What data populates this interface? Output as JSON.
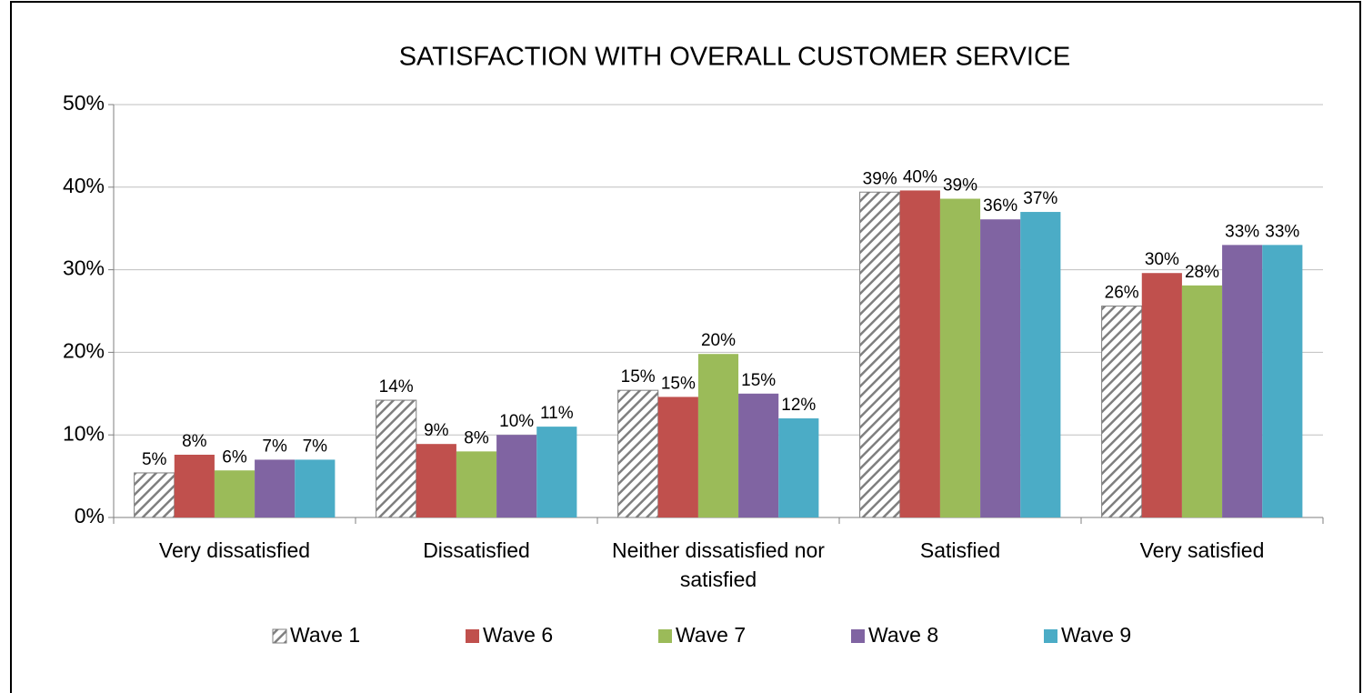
{
  "chart_data": {
    "type": "bar",
    "title": "SATISFACTION  WITH OVERALL CUSTOMER SERVICE",
    "categories": [
      "Very dissatisfied",
      "Dissatisfied",
      "Neither dissatisfied nor satisfied",
      "Satisfied",
      "Very satisfied"
    ],
    "series": [
      {
        "name": "Wave 1",
        "color": "#7f7f7f",
        "pattern": "hatch",
        "values": [
          5.4,
          14.2,
          15.4,
          39.4,
          25.6
        ],
        "value_labels": [
          "5%",
          "14%",
          "15%",
          "39%",
          "26%"
        ]
      },
      {
        "name": "Wave 6",
        "color": "#c0504d",
        "values": [
          7.6,
          8.9,
          14.6,
          39.6,
          29.6
        ],
        "value_labels": [
          "8%",
          "9%",
          "15%",
          "40%",
          "30%"
        ]
      },
      {
        "name": "Wave 7",
        "color": "#9bbb59",
        "values": [
          5.7,
          8,
          19.8,
          38.6,
          28.1
        ],
        "value_labels": [
          "6%",
          "8%",
          "20%",
          "39%",
          "28%"
        ]
      },
      {
        "name": "Wave 8",
        "color": "#8064a2",
        "values": [
          7,
          10,
          15,
          36.1,
          33
        ],
        "value_labels": [
          "7%",
          "10%",
          "15%",
          "36%",
          "33%"
        ]
      },
      {
        "name": "Wave 9",
        "color": "#4bacc6",
        "values": [
          7,
          11,
          12,
          37,
          33
        ],
        "value_labels": [
          "7%",
          "11%",
          "12%",
          "37%",
          "33%"
        ]
      }
    ],
    "ylim": [
      0,
      50
    ],
    "yticks": [
      {
        "value": 0,
        "label": "0%"
      },
      {
        "value": 10,
        "label": "10%"
      },
      {
        "value": 20,
        "label": "20%"
      },
      {
        "value": 30,
        "label": "30%"
      },
      {
        "value": 40,
        "label": "40%"
      },
      {
        "value": 50,
        "label": "50%"
      }
    ],
    "grid": true,
    "legend": "bottom"
  }
}
